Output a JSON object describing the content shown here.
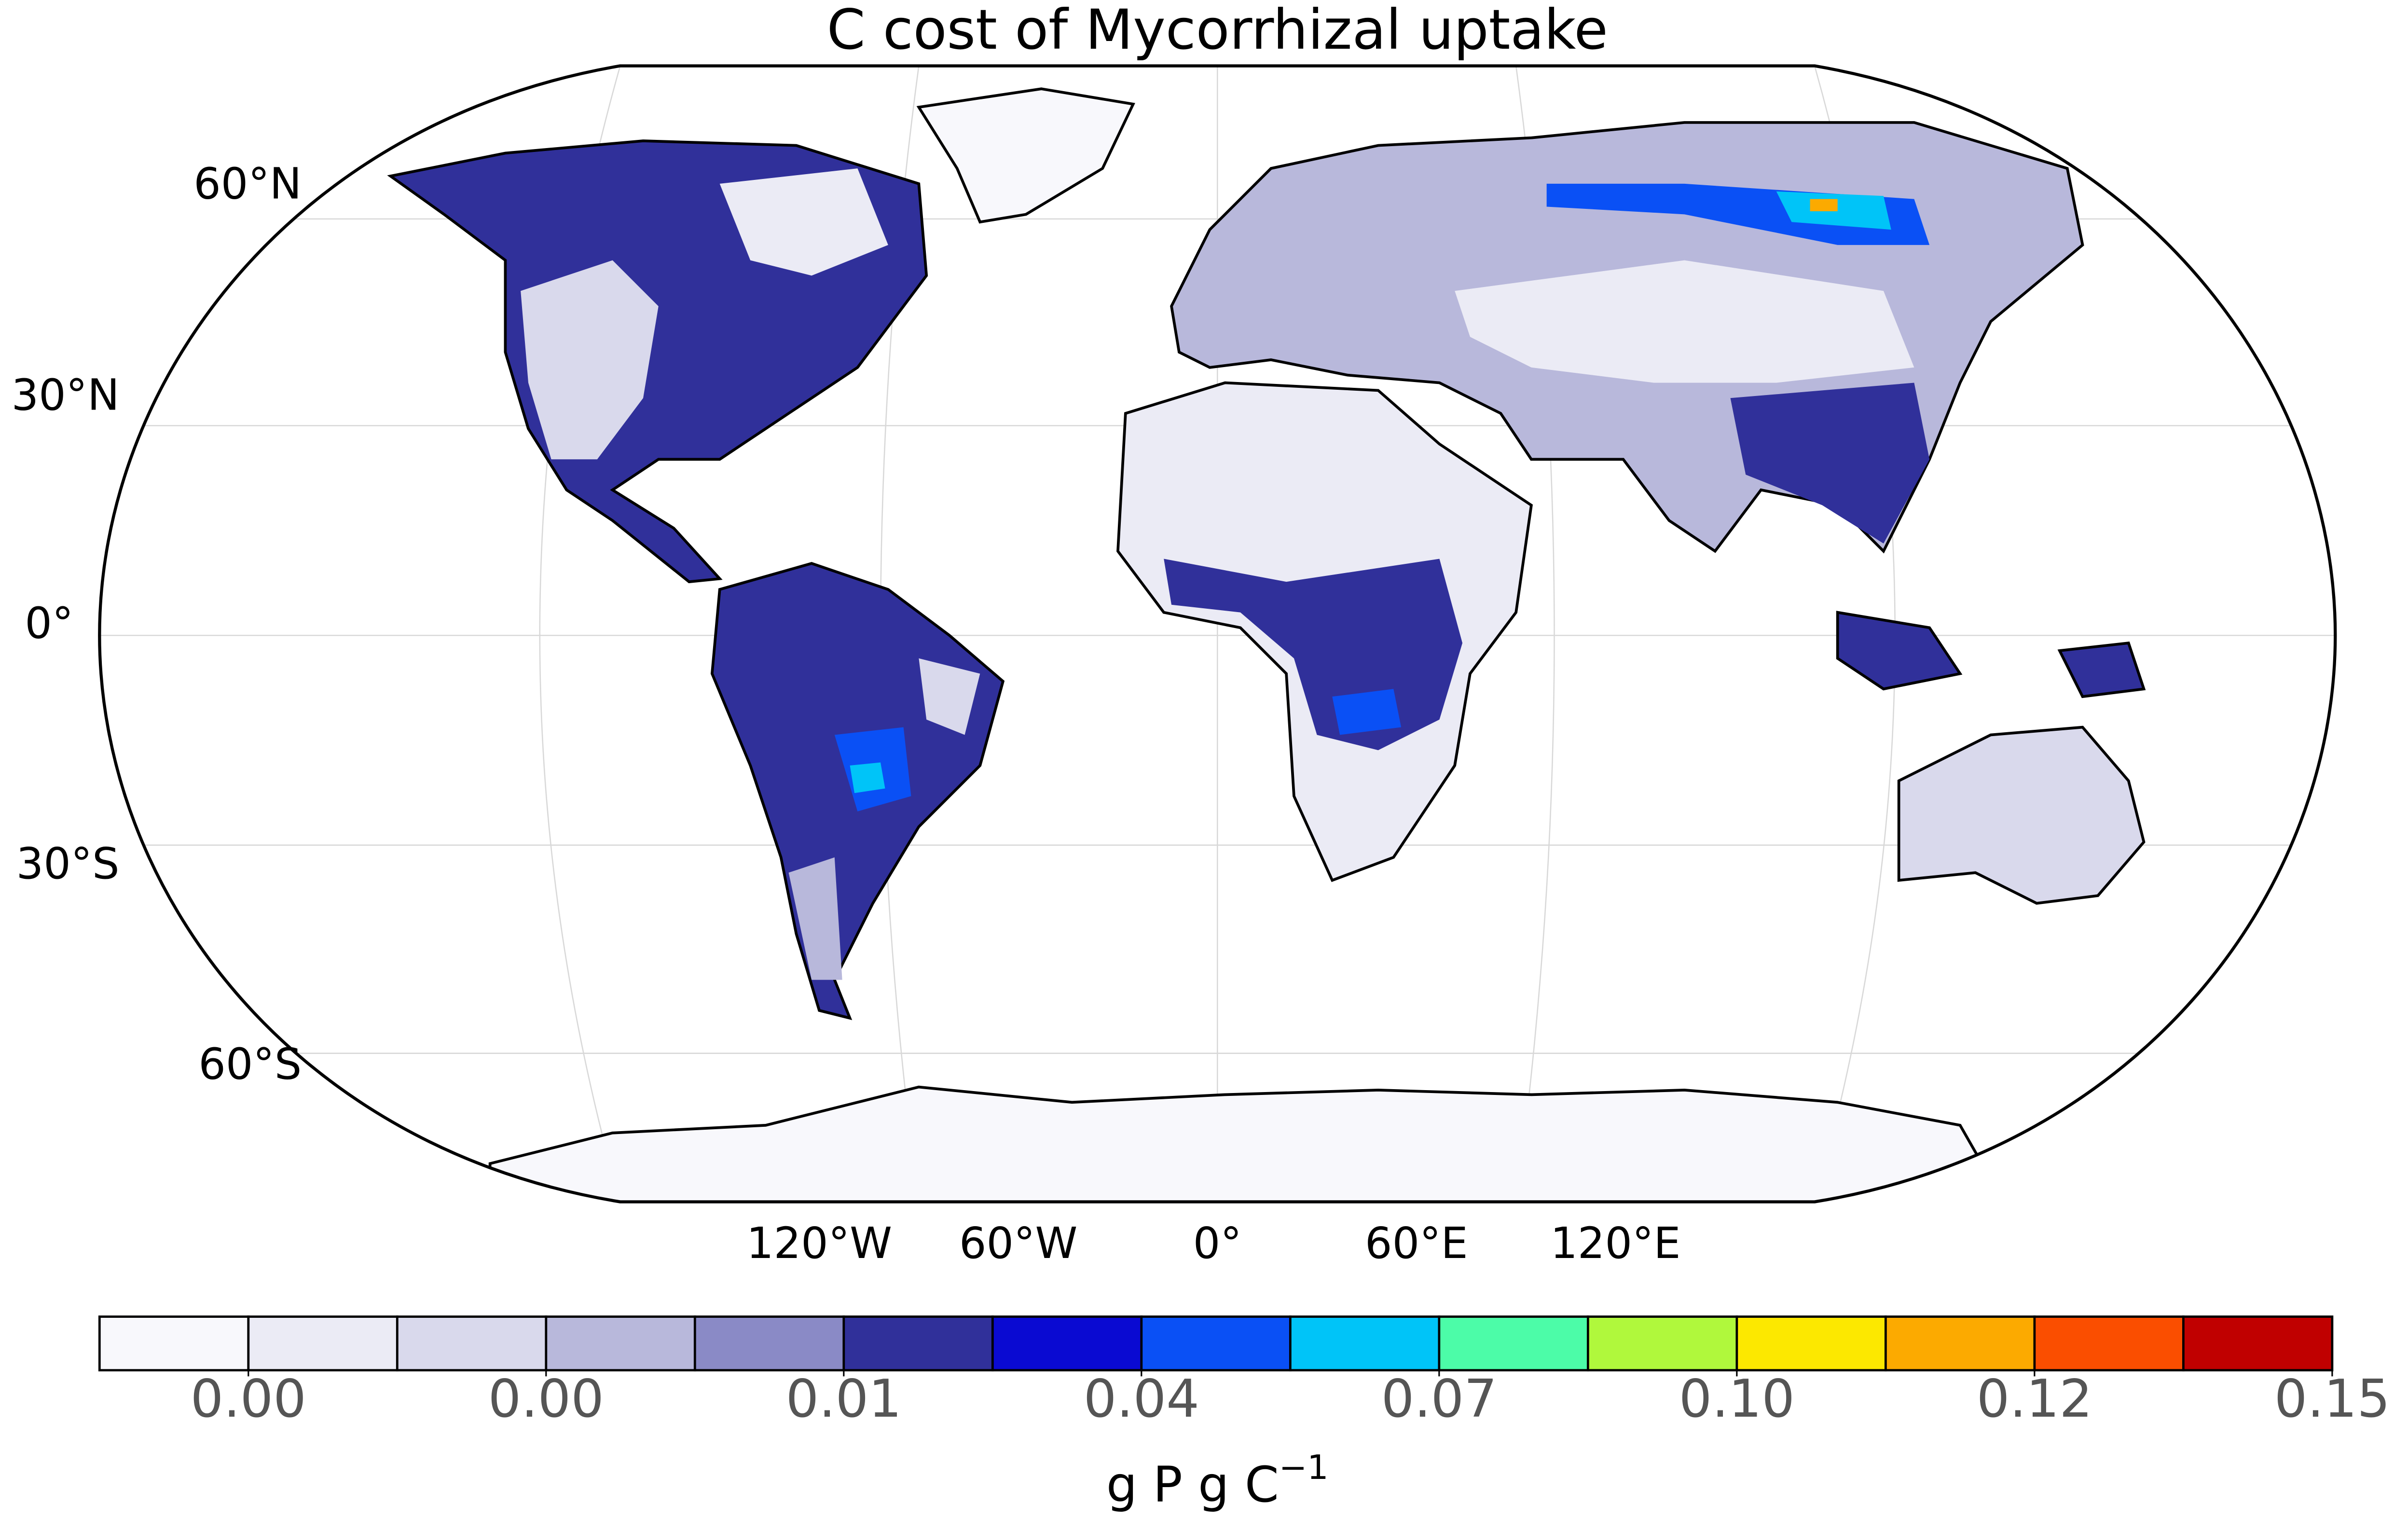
{
  "chart_data": {
    "type": "map",
    "title": "C cost of Mycorrhizal uptake",
    "lat_labels": [
      "60°N",
      "30°N",
      "0°",
      "30°S",
      "60°S"
    ],
    "lon_labels": [
      "120°W",
      "60°W",
      "0°",
      "60°E",
      "120°E"
    ],
    "colorbar": {
      "label": "g P g C",
      "label_exponent": "−1",
      "levels": [
        0,
        0.001,
        0.002,
        0.003,
        0.005,
        0.01,
        0.02,
        0.04,
        0.055,
        0.07,
        0.085,
        0.1,
        0.11,
        0.12,
        0.135,
        0.15
      ],
      "colors": [
        "#f8f8fc",
        "#ebebf5",
        "#d9d9ec",
        "#b8b8db",
        "#8a8ac6",
        "#30309a",
        "#0a0ad2",
        "#0a50f5",
        "#00c4f8",
        "#4cfca8",
        "#b0f83c",
        "#fce800",
        "#fcaa00",
        "#fa4e00",
        "#c00000"
      ],
      "ticks": [
        {
          "value": 0.001,
          "label": "0.00"
        },
        {
          "value": 0.003,
          "label": "0.00"
        },
        {
          "value": 0.01,
          "label": "0.01"
        },
        {
          "value": 0.04,
          "label": "0.04"
        },
        {
          "value": 0.07,
          "label": "0.07"
        },
        {
          "value": 0.1,
          "label": "0.10"
        },
        {
          "value": 0.12,
          "label": "0.12"
        },
        {
          "value": 0.15,
          "label": "0.15"
        }
      ]
    }
  }
}
